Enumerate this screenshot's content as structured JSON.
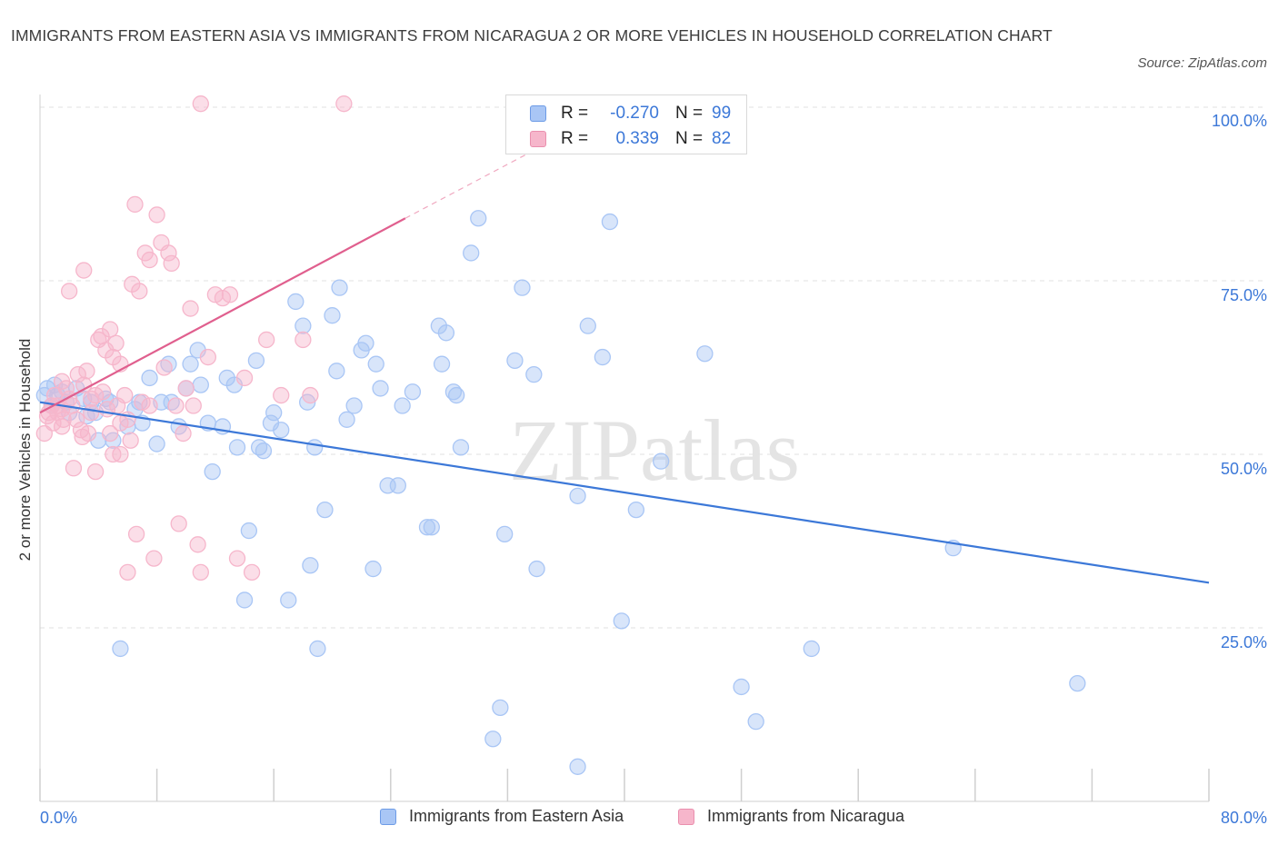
{
  "header": {
    "title": "IMMIGRANTS FROM EASTERN ASIA VS IMMIGRANTS FROM NICARAGUA 2 OR MORE VEHICLES IN HOUSEHOLD CORRELATION CHART",
    "source": "Source: ZipAtlas.com"
  },
  "watermark": "ZIPatlas",
  "legend_top": {
    "rows": [
      {
        "r_label": "R =",
        "r_value": "-0.270",
        "n_label": "N =",
        "n_value": "99"
      },
      {
        "r_label": "R =",
        "r_value": "0.339",
        "n_label": "N =",
        "n_value": "82"
      }
    ]
  },
  "chart_data": {
    "type": "scatter",
    "title": "IMMIGRANTS FROM EASTERN ASIA VS IMMIGRANTS FROM NICARAGUA 2 OR MORE VEHICLES IN HOUSEHOLD CORRELATION CHART",
    "xlabel": "",
    "ylabel": "2 or more Vehicles in Household",
    "xlim": [
      0,
      80
    ],
    "ylim": [
      0,
      100
    ],
    "x_ticks": [
      "0.0%",
      "80.0%"
    ],
    "y_ticks": [
      "25.0%",
      "50.0%",
      "75.0%",
      "100.0%"
    ],
    "y_tick_values": [
      25,
      50,
      75,
      100
    ],
    "grid": true,
    "legend_position": "bottom",
    "series": [
      {
        "name": "Immigrants from Eastern Asia",
        "color": "#3c78d8",
        "fill": "#a9c6f5",
        "r": -0.27,
        "n": 99,
        "trend": {
          "x": [
            0,
            80
          ],
          "y": [
            57.5,
            31.5
          ]
        },
        "points": [
          [
            0.3,
            58.5
          ],
          [
            0.5,
            59.5
          ],
          [
            0.8,
            57
          ],
          [
            1.0,
            60
          ],
          [
            1.2,
            58.5
          ],
          [
            1.5,
            59
          ],
          [
            1.8,
            57.5
          ],
          [
            2.0,
            56
          ],
          [
            2.5,
            59.5
          ],
          [
            3.0,
            58
          ],
          [
            3.2,
            55.5
          ],
          [
            3.5,
            57.5
          ],
          [
            3.8,
            56
          ],
          [
            4.0,
            52
          ],
          [
            4.5,
            58
          ],
          [
            4.8,
            57.5
          ],
          [
            5.0,
            52
          ],
          [
            5.5,
            22
          ],
          [
            6.0,
            54
          ],
          [
            6.5,
            56.5
          ],
          [
            6.8,
            57.5
          ],
          [
            7.0,
            54.5
          ],
          [
            7.5,
            61
          ],
          [
            8.0,
            51.5
          ],
          [
            8.3,
            57.5
          ],
          [
            8.8,
            63
          ],
          [
            9.0,
            57.5
          ],
          [
            9.5,
            54
          ],
          [
            10.0,
            59.5
          ],
          [
            10.3,
            63
          ],
          [
            10.8,
            65
          ],
          [
            11.0,
            60
          ],
          [
            11.5,
            54.5
          ],
          [
            11.8,
            47.5
          ],
          [
            12.5,
            54
          ],
          [
            12.8,
            61
          ],
          [
            13.3,
            60
          ],
          [
            13.5,
            51
          ],
          [
            14.0,
            29
          ],
          [
            14.3,
            39
          ],
          [
            14.8,
            63.5
          ],
          [
            15.0,
            51
          ],
          [
            15.3,
            50.5
          ],
          [
            15.8,
            54.5
          ],
          [
            16.0,
            56
          ],
          [
            16.5,
            53.5
          ],
          [
            17.0,
            29
          ],
          [
            17.5,
            72
          ],
          [
            18.0,
            68.5
          ],
          [
            18.3,
            57.5
          ],
          [
            18.5,
            34
          ],
          [
            18.8,
            51
          ],
          [
            19.0,
            22
          ],
          [
            19.5,
            42
          ],
          [
            20.0,
            70
          ],
          [
            20.3,
            62
          ],
          [
            20.5,
            74
          ],
          [
            21.0,
            55
          ],
          [
            21.5,
            57
          ],
          [
            22.0,
            65
          ],
          [
            22.3,
            66
          ],
          [
            22.8,
            33.5
          ],
          [
            23.0,
            63
          ],
          [
            23.3,
            59.5
          ],
          [
            23.8,
            45.5
          ],
          [
            24.5,
            45.5
          ],
          [
            24.8,
            57
          ],
          [
            25.5,
            59
          ],
          [
            26.5,
            39.5
          ],
          [
            26.8,
            39.5
          ],
          [
            27.3,
            68.5
          ],
          [
            27.5,
            63
          ],
          [
            27.8,
            67.5
          ],
          [
            28.3,
            59
          ],
          [
            28.5,
            58.5
          ],
          [
            28.8,
            51
          ],
          [
            30.0,
            84
          ],
          [
            29.5,
            79
          ],
          [
            31.5,
            13.5
          ],
          [
            31.0,
            9
          ],
          [
            31.8,
            38.5
          ],
          [
            32.5,
            63.5
          ],
          [
            33.0,
            74
          ],
          [
            33.8,
            61.5
          ],
          [
            34.0,
            33.5
          ],
          [
            34.3,
            100.5
          ],
          [
            36.8,
            5
          ],
          [
            36.8,
            44
          ],
          [
            37.5,
            68.5
          ],
          [
            38.5,
            64
          ],
          [
            39.0,
            83.5
          ],
          [
            39.8,
            26
          ],
          [
            40.8,
            42
          ],
          [
            42.5,
            49
          ],
          [
            45.5,
            64.5
          ],
          [
            48.0,
            16.5
          ],
          [
            49.0,
            11.5
          ],
          [
            52.8,
            22
          ],
          [
            62.5,
            36.5
          ],
          [
            71.0,
            17
          ]
        ]
      },
      {
        "name": "Immigrants from Nicaragua",
        "color": "#e05f8e",
        "fill": "#f6b6cb",
        "r": 0.339,
        "n": 82,
        "trend": {
          "x": [
            0,
            25
          ],
          "y": [
            56,
            84
          ]
        },
        "trend_dashed": {
          "x": [
            25,
            34
          ],
          "y": [
            84,
            94
          ]
        },
        "points": [
          [
            0.3,
            53
          ],
          [
            0.5,
            55.5
          ],
          [
            0.8,
            57
          ],
          [
            1.0,
            58.5
          ],
          [
            1.2,
            56
          ],
          [
            1.5,
            54
          ],
          [
            1.8,
            59.5
          ],
          [
            2.0,
            58
          ],
          [
            2.2,
            57
          ],
          [
            2.5,
            55
          ],
          [
            2.8,
            53.5
          ],
          [
            3.0,
            60
          ],
          [
            2.0,
            73.5
          ],
          [
            3.0,
            76.5
          ],
          [
            3.2,
            62
          ],
          [
            3.5,
            58
          ],
          [
            3.8,
            58.5
          ],
          [
            3.3,
            53
          ],
          [
            2.3,
            48
          ],
          [
            3.8,
            47.5
          ],
          [
            4.0,
            66.5
          ],
          [
            4.2,
            67
          ],
          [
            4.5,
            65
          ],
          [
            4.8,
            68
          ],
          [
            5.0,
            64
          ],
          [
            5.2,
            66
          ],
          [
            5.5,
            63
          ],
          [
            4.6,
            56.5
          ],
          [
            4.8,
            53
          ],
          [
            5.3,
            57
          ],
          [
            5.5,
            54.5
          ],
          [
            5.0,
            50
          ],
          [
            5.5,
            50
          ],
          [
            5.8,
            58.5
          ],
          [
            6.0,
            55
          ],
          [
            6.2,
            52
          ],
          [
            6.5,
            86
          ],
          [
            6.3,
            74.5
          ],
          [
            6.6,
            38.5
          ],
          [
            6.8,
            73.5
          ],
          [
            7.0,
            57.5
          ],
          [
            7.2,
            79
          ],
          [
            7.5,
            78
          ],
          [
            7.8,
            35
          ],
          [
            8.0,
            84.5
          ],
          [
            8.3,
            80.5
          ],
          [
            8.5,
            62.5
          ],
          [
            8.8,
            79
          ],
          [
            9.0,
            77.5
          ],
          [
            9.3,
            57
          ],
          [
            9.5,
            40
          ],
          [
            9.8,
            53
          ],
          [
            10.0,
            59.5
          ],
          [
            10.3,
            71
          ],
          [
            10.5,
            57
          ],
          [
            10.8,
            37
          ],
          [
            11.0,
            33
          ],
          [
            11.5,
            64
          ],
          [
            12.0,
            73
          ],
          [
            12.5,
            72.5
          ],
          [
            13.0,
            73
          ],
          [
            13.5,
            35
          ],
          [
            14.0,
            61
          ],
          [
            14.5,
            33
          ],
          [
            15.5,
            66.5
          ],
          [
            16.5,
            58.5
          ],
          [
            18.0,
            66.5
          ],
          [
            18.5,
            58.5
          ],
          [
            11.0,
            100.5
          ],
          [
            20.8,
            100.5
          ],
          [
            1.5,
            60.5
          ],
          [
            2.6,
            61.5
          ],
          [
            1.6,
            55
          ],
          [
            0.6,
            56
          ],
          [
            0.9,
            54.5
          ],
          [
            2.9,
            52.5
          ],
          [
            4.3,
            59
          ],
          [
            6.0,
            33
          ],
          [
            1.2,
            57
          ],
          [
            3.5,
            56
          ],
          [
            7.5,
            57
          ],
          [
            1.5,
            56.5
          ]
        ]
      }
    ]
  },
  "legend_bottom": {
    "items": [
      "Immigrants from Eastern Asia",
      "Immigrants from Nicaragua"
    ]
  }
}
